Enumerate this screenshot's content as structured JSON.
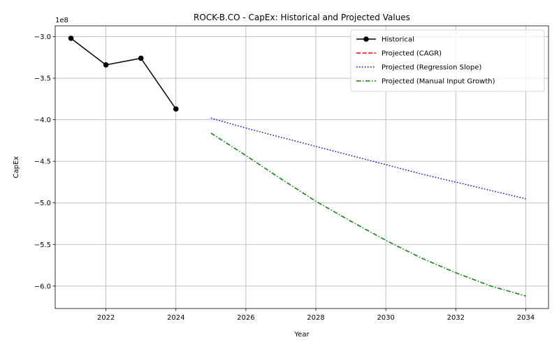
{
  "chart_data": {
    "type": "line",
    "title": "ROCK-B.CO - CapEx: Historical and Projected Values",
    "xlabel": "Year",
    "ylabel": "CapEx",
    "y_offset_label": "1e8",
    "xlim": [
      2020.55,
      2034.65
    ],
    "ylim": [
      -627000000,
      -287000000
    ],
    "x_ticks": [
      2022,
      2024,
      2026,
      2028,
      2030,
      2032,
      2034
    ],
    "y_ticks": [
      -300000000,
      -350000000,
      -400000000,
      -450000000,
      -500000000,
      -550000000,
      -600000000
    ],
    "y_tick_labels": [
      "−3.0",
      "−3.5",
      "−4.0",
      "−4.5",
      "−5.0",
      "−5.5",
      "−6.0"
    ],
    "grid": true,
    "legend_position": "top-right",
    "series": [
      {
        "name": "Historical",
        "color": "#000000",
        "style": "solid",
        "marker": "circle",
        "x": [
          2021,
          2022,
          2023,
          2024
        ],
        "values": [
          -302000000,
          -334000000,
          -326000000,
          -387000000
        ]
      },
      {
        "name": "Projected (CAGR)",
        "color": "#ff0000",
        "style": "dashed",
        "marker": "none",
        "x": [],
        "values": []
      },
      {
        "name": "Projected (Regression Slope)",
        "color": "#0000ff",
        "style": "dotted",
        "marker": "none",
        "x": [
          2025,
          2026,
          2027,
          2028,
          2029,
          2030,
          2031,
          2032,
          2033,
          2034
        ],
        "values": [
          -398000000,
          -410000000,
          -421000000,
          -432000000,
          -443000000,
          -454000000,
          -465000000,
          -475000000,
          -485000000,
          -495000000
        ]
      },
      {
        "name": "Projected (Manual Input Growth)",
        "color": "#008000",
        "style": "dashdot",
        "marker": "none",
        "x": [
          2025,
          2026,
          2027,
          2028,
          2029,
          2030,
          2031,
          2032,
          2033,
          2034
        ],
        "values": [
          -416000000,
          -443000000,
          -471000000,
          -498000000,
          -522000000,
          -545000000,
          -566000000,
          -584000000,
          -600000000,
          -612000000
        ]
      }
    ]
  }
}
